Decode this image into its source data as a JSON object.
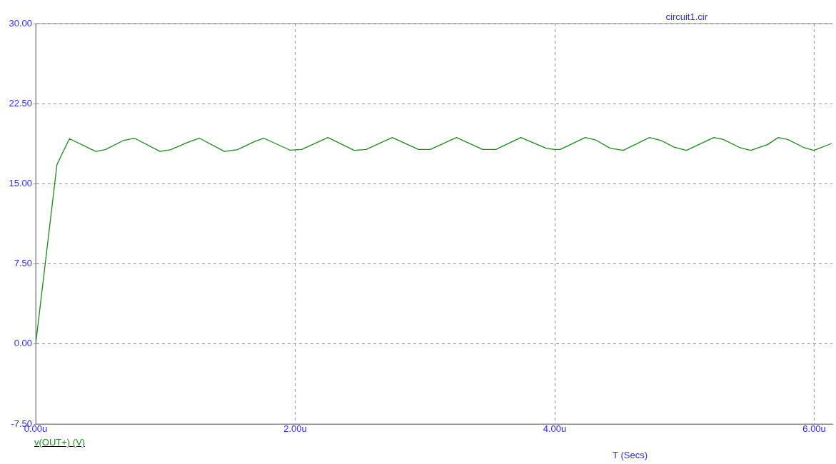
{
  "chart_data": {
    "type": "line",
    "xlabel": "T (Secs)",
    "annotations": [
      "circuit1.cir"
    ],
    "x": [
      0,
      0.164,
      0.26,
      0.463,
      0.536,
      0.674,
      0.76,
      0.958,
      1.041,
      1.169,
      1.261,
      1.454,
      1.555,
      1.683,
      1.757,
      1.959,
      2.05,
      2.252,
      2.454,
      2.546,
      2.748,
      2.95,
      3.041,
      3.243,
      3.445,
      3.546,
      3.739,
      3.932,
      3.996,
      4.042,
      4.235,
      4.317,
      4.427,
      4.528,
      4.73,
      4.822,
      4.923,
      5.015,
      5.226,
      5.299,
      5.428,
      5.51,
      5.639,
      5.722,
      5.795,
      5.923,
      5.997,
      6.134
    ],
    "series": [
      {
        "name": "v(OUT+) (V)",
        "color": "#1a8c1a",
        "values": [
          0,
          16.8,
          19.22,
          18.03,
          18.19,
          19.04,
          19.27,
          18.03,
          18.19,
          18.86,
          19.27,
          18.03,
          18.19,
          18.93,
          19.27,
          18.15,
          18.21,
          19.33,
          18.13,
          18.21,
          19.33,
          18.21,
          18.21,
          19.33,
          18.21,
          18.21,
          19.33,
          18.33,
          18.21,
          18.21,
          19.33,
          19.09,
          18.33,
          18.13,
          19.33,
          19.04,
          18.41,
          18.13,
          19.33,
          19.15,
          18.37,
          18.13,
          18.66,
          19.33,
          19.15,
          18.37,
          18.13,
          18.77
        ]
      }
    ],
    "xlim": [
      0,
      6.14
    ],
    "xticks": [
      {
        "value": 0,
        "label": "0.00u"
      },
      {
        "value": 2,
        "label": "2.00u"
      },
      {
        "value": 4,
        "label": "4.00u"
      },
      {
        "value": 6,
        "label": "6.00u"
      }
    ],
    "ylim": [
      -7.5,
      30
    ],
    "yticks": [
      {
        "value": -7.5,
        "label": "-7.50"
      },
      {
        "value": 0,
        "label": "0.00"
      },
      {
        "value": 7.5,
        "label": "7.50"
      },
      {
        "value": 15,
        "label": "15.00"
      },
      {
        "value": 22.5,
        "label": "22.50"
      },
      {
        "value": 30,
        "label": "30.00"
      }
    ],
    "grid": true,
    "legend": "bottom left",
    "marker": "none",
    "line_style": "solid"
  }
}
